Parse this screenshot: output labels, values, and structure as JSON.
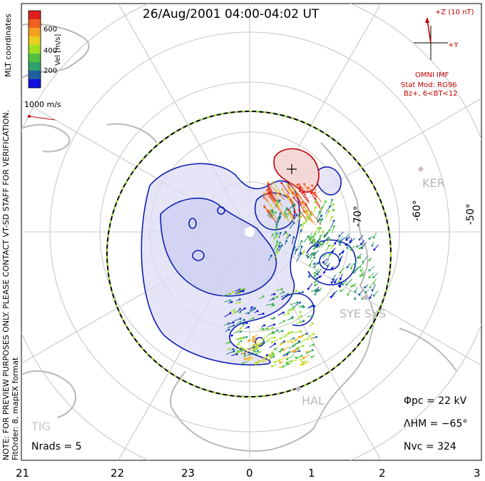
{
  "title": "26/Aug/2001 04:00-04:02 UT",
  "note_line1": "NOTE: FOR PREVIEW PURPOSES ONLY. PLEASE CONTACT VT-SD STAFF FOR VERIFICATION.",
  "note_line2": "FitOrder: 8, mapEX format",
  "coord_label": "MLT coordinates",
  "colorbar": {
    "label": "Vel [m/s]",
    "ticks": [
      "600",
      "400",
      "200"
    ],
    "colors": [
      "#e0201f",
      "#f06020",
      "#f4a020",
      "#e8d020",
      "#a0e020",
      "#50c040",
      "#30a070",
      "#2060a0",
      "#1010e0"
    ]
  },
  "scale_vector": "1000 m/s",
  "imf": {
    "z_label": "+Z (10 nT)",
    "y_label": "+Y",
    "source": "OMNI IMF",
    "model_line1": "Stat Mod: RG96",
    "model_line2": "Bz+, 6<BT<12"
  },
  "stations": [
    "KER",
    "SYE SYS",
    "HAL",
    "TIG"
  ],
  "longitudes": [
    "-70°",
    "-60°",
    "-50°"
  ],
  "mlt_labels": [
    "21",
    "22",
    "23",
    "0",
    "1",
    "2",
    "3"
  ],
  "stats": {
    "phi_pc": "Φpc = 22 kV",
    "lambda_hm": "ΛHM = −65°",
    "n_vc": "Nvc = 324",
    "n_rads": "Nrads = 5"
  }
}
